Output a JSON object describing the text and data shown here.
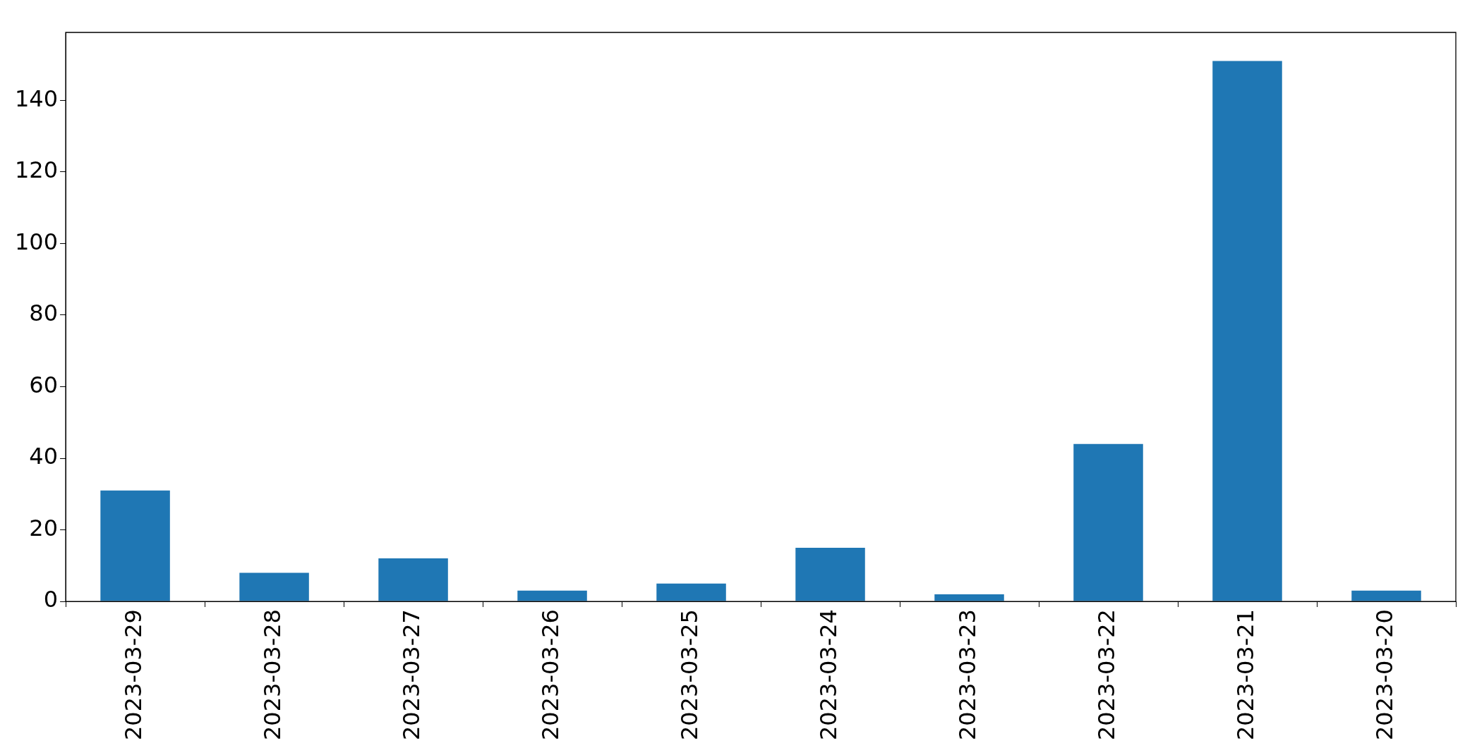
{
  "chart_data": {
    "type": "bar",
    "categories": [
      "2023-03-29",
      "2023-03-28",
      "2023-03-27",
      "2023-03-26",
      "2023-03-25",
      "2023-03-24",
      "2023-03-23",
      "2023-03-22",
      "2023-03-21",
      "2023-03-20"
    ],
    "values": [
      31,
      8,
      12,
      3,
      5,
      15,
      2,
      44,
      151,
      3
    ],
    "color": "#1f77b4",
    "ylim": [
      0,
      159
    ],
    "yticks": [
      0,
      20,
      40,
      60,
      80,
      100,
      120,
      140
    ],
    "grid": false,
    "legend": false
  }
}
